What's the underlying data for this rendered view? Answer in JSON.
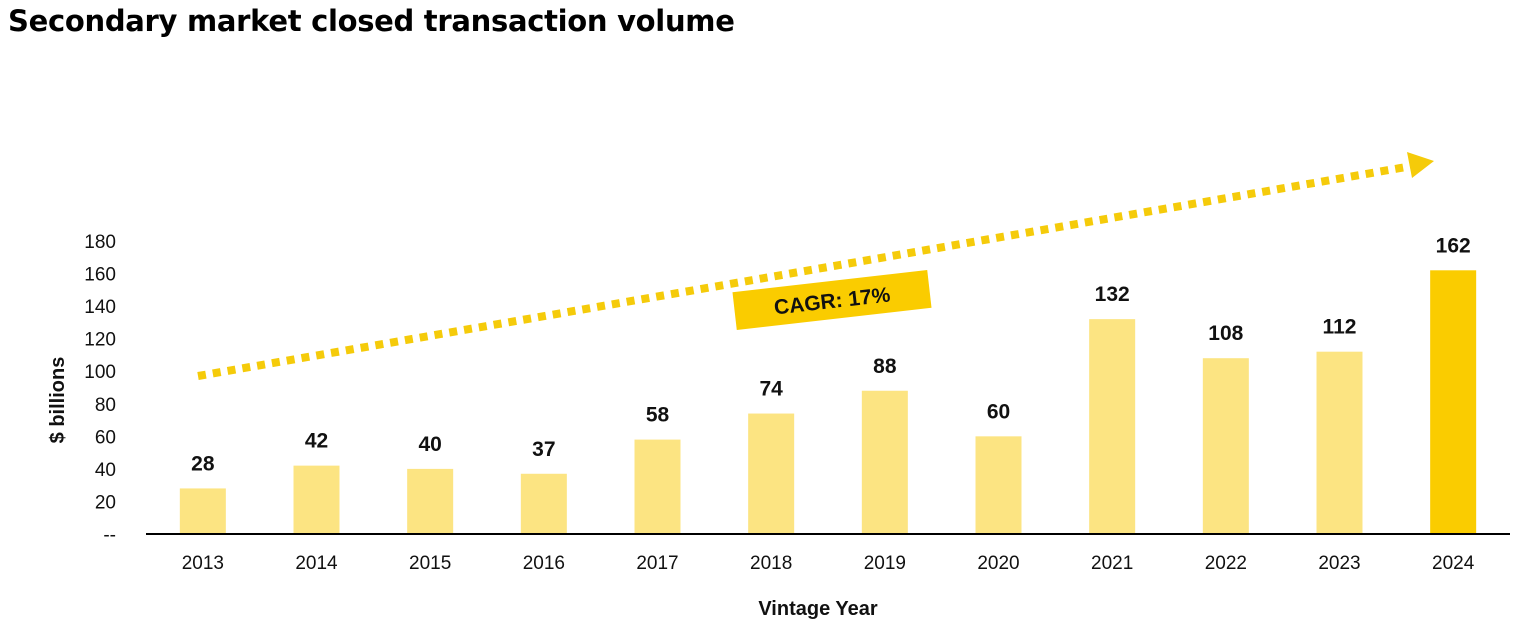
{
  "title": "Secondary market closed transaction volume",
  "chart_data": {
    "type": "bar",
    "title": "Secondary market closed transaction volume",
    "xlabel": "Vintage Year",
    "ylabel": "$ billions",
    "categories": [
      "2013",
      "2014",
      "2015",
      "2016",
      "2017",
      "2018",
      "2019",
      "2020",
      "2021",
      "2022",
      "2023",
      "2024"
    ],
    "values": [
      28,
      42,
      40,
      37,
      58,
      74,
      88,
      60,
      132,
      108,
      112,
      162
    ],
    "data_labels": [
      "28",
      "42",
      "40",
      "37",
      "58",
      "74",
      "88",
      "60",
      "132",
      "108",
      "112",
      "162"
    ],
    "ylim": [
      0,
      180
    ],
    "y_ticks": [
      0,
      20,
      40,
      60,
      80,
      100,
      120,
      140,
      160,
      180
    ],
    "y_tick_labels": [
      "--",
      "20",
      "40",
      "60",
      "80",
      "100",
      "120",
      "140",
      "160",
      "180"
    ],
    "grid": false,
    "legend": "none",
    "annotation": "CAGR: 17%",
    "colors": {
      "bar": "#FCE482",
      "highlight_bar": "#FACC00",
      "trend_arrow": "#F5CB0A",
      "callout_box": "#FACC00",
      "axis": "#000000"
    },
    "highlight_category": "2024"
  }
}
